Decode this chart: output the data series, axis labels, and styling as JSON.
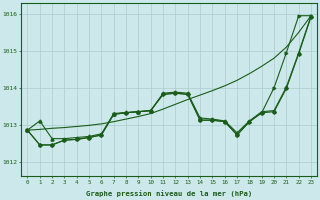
{
  "background_color": "#cce8ea",
  "grid_color": "#aacccc",
  "line_color": "#1a5c1a",
  "xlabel": "Graphe pression niveau de la mer (hPa)",
  "xlim": [
    -0.5,
    23.5
  ],
  "ylim": [
    1011.6,
    1016.3
  ],
  "yticks": [
    1012,
    1013,
    1014,
    1015,
    1016
  ],
  "xticks": [
    0,
    1,
    2,
    3,
    4,
    5,
    6,
    7,
    8,
    9,
    10,
    11,
    12,
    13,
    14,
    15,
    16,
    17,
    18,
    19,
    20,
    21,
    22,
    23
  ],
  "s1_y": [
    1012.85,
    1012.87,
    1012.9,
    1012.92,
    1012.95,
    1012.98,
    1013.02,
    1013.08,
    1013.15,
    1013.22,
    1013.3,
    1013.42,
    1013.55,
    1013.68,
    1013.8,
    1013.92,
    1014.05,
    1014.2,
    1014.38,
    1014.58,
    1014.8,
    1015.1,
    1015.5,
    1015.95
  ],
  "s2_y": [
    1012.85,
    1013.1,
    1012.62,
    1012.62,
    1012.65,
    1012.68,
    1012.75,
    1013.3,
    1013.33,
    1013.35,
    1013.38,
    1013.85,
    1013.88,
    1013.85,
    1013.18,
    1013.15,
    1013.1,
    1012.78,
    1013.1,
    1013.35,
    1013.38,
    1014.02,
    1014.95,
    1015.95
  ],
  "s3_y": [
    1012.85,
    1012.45,
    1012.45,
    1012.58,
    1012.6,
    1012.65,
    1012.72,
    1013.28,
    1013.32,
    1013.35,
    1013.38,
    1013.82,
    1013.85,
    1013.82,
    1013.12,
    1013.12,
    1013.08,
    1012.72,
    1013.08,
    1013.32,
    1013.35,
    1013.98,
    1014.92,
    1015.92
  ],
  "s4_y": [
    1012.85,
    1012.45,
    1012.45,
    1012.58,
    1012.6,
    1012.65,
    1012.72,
    1013.28,
    1013.32,
    1013.35,
    1013.38,
    1013.82,
    1013.85,
    1013.82,
    1013.12,
    1013.12,
    1013.08,
    1012.72,
    1013.08,
    1013.32,
    1014.0,
    1014.95,
    1015.95,
    1015.95
  ]
}
